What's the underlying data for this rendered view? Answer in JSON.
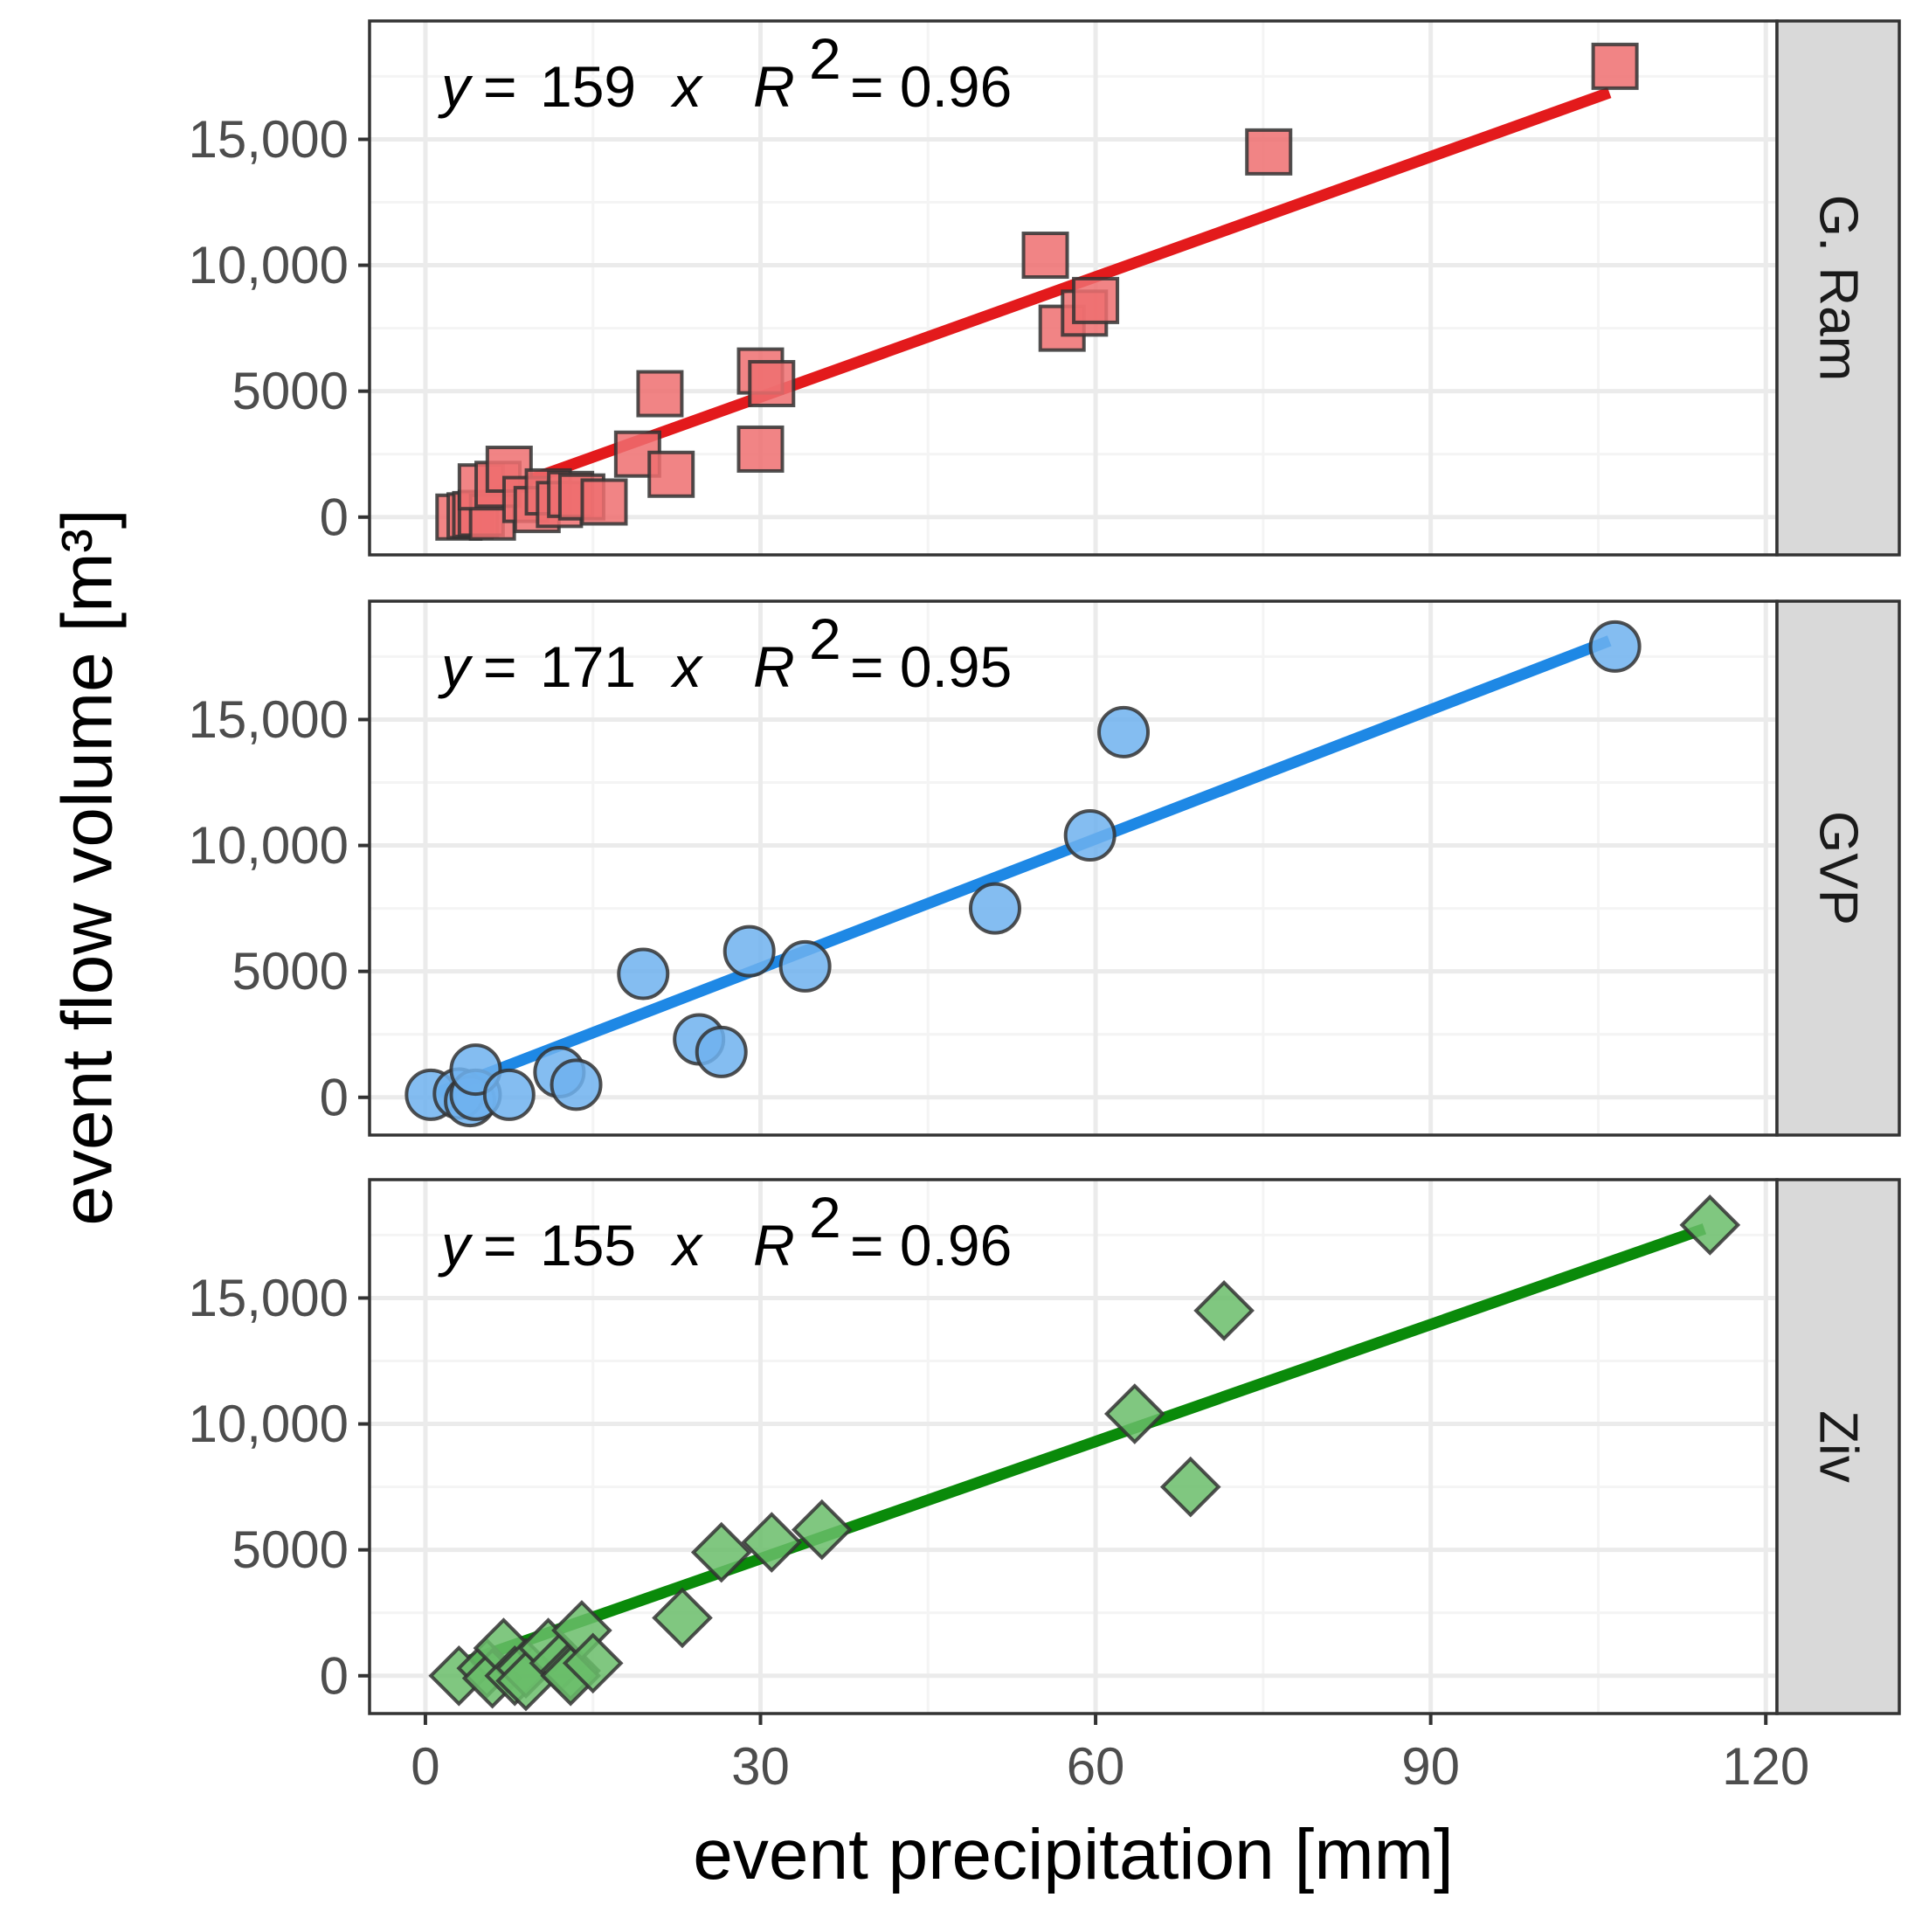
{
  "chart_data": {
    "type": "scatter",
    "xlabel": "event precipitation [mm]",
    "ylabel": "event flow volume [m³]",
    "xlim": [
      -5,
      121
    ],
    "ylim": [
      -1500,
      19700
    ],
    "x_ticks": [
      0,
      30,
      60,
      90,
      120
    ],
    "x_tick_labels": [
      "0",
      "30",
      "60",
      "90",
      "120"
    ],
    "y_ticks": [
      0,
      5000,
      10000,
      15000
    ],
    "y_tick_labels": [
      "0",
      "5000",
      "10,000",
      "15,000"
    ],
    "grid": true,
    "panels": [
      {
        "name": "G. Ram",
        "marker": "square",
        "color": "#e31a1c",
        "fill": "#ef6f70",
        "slope": 159,
        "r2": "0.96",
        "equation": {
          "y": "y",
          "eq": "=",
          "slope": "159",
          "x": "x",
          "R": "R",
          "sup": "2",
          "r2text": "= 0.96"
        },
        "fit_x": [
          3,
          106
        ],
        "points": [
          [
            3,
            0
          ],
          [
            4,
            50
          ],
          [
            4.5,
            100
          ],
          [
            5,
            150
          ],
          [
            6,
            0
          ],
          [
            5,
            1200
          ],
          [
            6.5,
            1300
          ],
          [
            7.5,
            1900
          ],
          [
            9,
            700
          ],
          [
            10,
            300
          ],
          [
            11,
            1000
          ],
          [
            12,
            500
          ],
          [
            13,
            900
          ],
          [
            14,
            800
          ],
          [
            16,
            600
          ],
          [
            19,
            2500
          ],
          [
            21,
            4900
          ],
          [
            22,
            1700
          ],
          [
            30,
            5800
          ],
          [
            31,
            5300
          ],
          [
            30,
            2700
          ],
          [
            55.5,
            10400
          ],
          [
            57,
            7500
          ],
          [
            59,
            8100
          ],
          [
            60,
            8600
          ],
          [
            75.5,
            14500
          ],
          [
            106.5,
            17900
          ]
        ]
      },
      {
        "name": "GVP",
        "marker": "circle",
        "color": "#1e88e5",
        "fill": "#6fb1ef",
        "slope": 171,
        "r2": "0.95",
        "equation": {
          "y": "y",
          "eq": "=",
          "slope": "171",
          "x": "x",
          "R": "R",
          "sup": "2",
          "r2text": "= 0.95"
        },
        "fit_x": [
          1,
          106
        ],
        "points": [
          [
            0.5,
            100
          ],
          [
            3,
            150
          ],
          [
            4,
            -150
          ],
          [
            4.5,
            100
          ],
          [
            4.5,
            1100
          ],
          [
            7.5,
            100
          ],
          [
            12,
            1000
          ],
          [
            13.5,
            500
          ],
          [
            19.5,
            4900
          ],
          [
            24.5,
            2300
          ],
          [
            26.5,
            1800
          ],
          [
            29,
            5800
          ],
          [
            34,
            5200
          ],
          [
            51,
            7500
          ],
          [
            59.5,
            10400
          ],
          [
            62.5,
            14500
          ],
          [
            106.5,
            17900
          ]
        ]
      },
      {
        "name": "Ziv",
        "marker": "diamond",
        "color": "#0a8a0a",
        "fill": "#6abd6a",
        "slope": 155,
        "r2": "0.96",
        "equation": {
          "y": "y",
          "eq": "=",
          "slope": "155",
          "x": "x",
          "R": "R",
          "sup": "2",
          "r2text": "= 0.96"
        },
        "fit_x": [
          4,
          114.5
        ],
        "points": [
          [
            3,
            0
          ],
          [
            5.5,
            300
          ],
          [
            6,
            -100
          ],
          [
            7,
            1100
          ],
          [
            8,
            0
          ],
          [
            9,
            300
          ],
          [
            9,
            -200
          ],
          [
            11,
            1100
          ],
          [
            12,
            500
          ],
          [
            13,
            200
          ],
          [
            13,
            0
          ],
          [
            14,
            1800
          ],
          [
            15,
            500
          ],
          [
            23,
            2300
          ],
          [
            26.5,
            4900
          ],
          [
            31,
            5300
          ],
          [
            35.5,
            5800
          ],
          [
            63.5,
            10400
          ],
          [
            68.5,
            7500
          ],
          [
            71.5,
            14500
          ],
          [
            115,
            17900
          ]
        ]
      }
    ]
  }
}
